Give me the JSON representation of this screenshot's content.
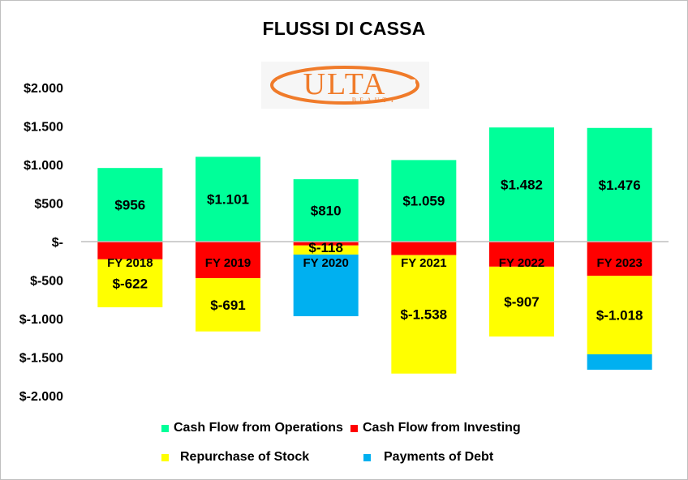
{
  "chart_data": {
    "type": "bar",
    "stacked": true,
    "title": "FLUSSI DI CASSA",
    "xlabel": "",
    "ylabel": "",
    "ylim": [
      -2000,
      2000
    ],
    "y_ticks": [
      2000,
      1500,
      1000,
      500,
      0,
      -500,
      -1000,
      -1500,
      -2000
    ],
    "y_tick_labels": [
      "$2.000",
      "$1.500",
      "$1.000",
      "$500",
      "$-",
      "$-500",
      "$-1.000",
      "$-1.500",
      "$-2.000"
    ],
    "categories": [
      "FY 2018",
      "FY 2019",
      "FY 2020",
      "FY 2021",
      "FY 2022",
      "FY 2023"
    ],
    "series": [
      {
        "name": "Cash Flow from Operations",
        "color": "#00ff99",
        "values": [
          956,
          1101,
          810,
          1059,
          1482,
          1476
        ],
        "labels": [
          "$956",
          "$1.101",
          "$810",
          "$1.059",
          "$1.482",
          "$1.476"
        ]
      },
      {
        "name": "Cash Flow from Investing",
        "color": "#ff0000",
        "values": [
          -230,
          -475,
          -50,
          -175,
          -325,
          -445
        ],
        "labels": [
          null,
          null,
          null,
          null,
          null,
          null
        ]
      },
      {
        "name": "Repurchase of Stock",
        "color": "#ffff00",
        "values": [
          -622,
          -691,
          -118,
          -1538,
          -907,
          -1018
        ],
        "labels": [
          "$-622",
          "$-691",
          "$-118",
          "$-1.538",
          "$-907",
          "$-1.018"
        ]
      },
      {
        "name": "Payments of Debt",
        "color": "#00b0f0",
        "values": [
          0,
          0,
          -800,
          0,
          0,
          -200
        ],
        "labels": [
          null,
          null,
          null,
          null,
          null,
          null
        ]
      }
    ],
    "grid": false,
    "legend_position": "bottom",
    "logo_text": "ULTA",
    "logo_subtext": "BEAUTY"
  }
}
